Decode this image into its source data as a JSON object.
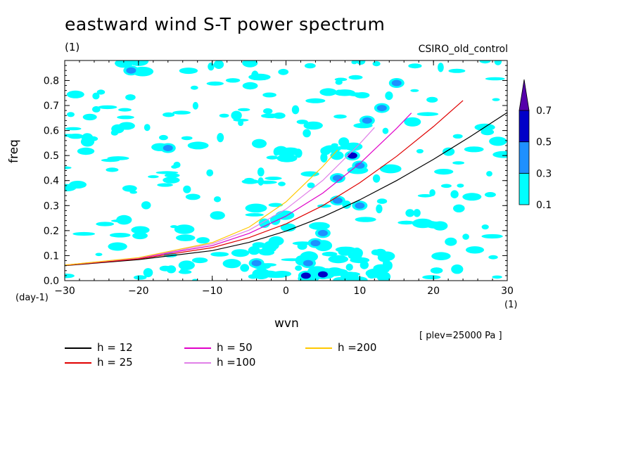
{
  "chart_data": {
    "type": "heatmap",
    "title": "eastward wind S-T power spectrum",
    "subtitle": "(1)",
    "model": "CSIRO_old_control",
    "xlabel": "wvn",
    "ylabel": "freq",
    "x_unit": "(1)",
    "y_unit": "(day-1)",
    "xlim": [
      -30,
      30
    ],
    "ylim": [
      0,
      0.88
    ],
    "x_ticks": [
      -30,
      -20,
      -10,
      0,
      10,
      20,
      30
    ],
    "x_tick_labels": [
      "−30",
      "−20",
      "−10",
      "0",
      "10",
      "20",
      "30"
    ],
    "y_ticks": [
      0,
      0.1,
      0.2,
      0.3,
      0.4,
      0.5,
      0.6,
      0.7,
      0.8
    ],
    "y_tick_labels": [
      "0.0",
      "0.1",
      "0.2",
      "0.3",
      "0.4",
      "0.5",
      "0.6",
      "0.7",
      "0.8"
    ],
    "note": "[ plev=25000 Pa ]",
    "colorbar": {
      "levels": [
        0.1,
        0.3,
        0.5,
        0.7
      ],
      "labels": [
        "0.1",
        "0.3",
        "0.5",
        "0.7"
      ],
      "colors": [
        "#00ffff",
        "#1e90ff",
        "#0000c8",
        "#5500aa"
      ]
    },
    "contour_patches": [
      {
        "x": 2.7,
        "y": 0.02,
        "level": 0.5
      },
      {
        "x": 5,
        "y": 0.025,
        "level": 0.5
      },
      {
        "x": -4,
        "y": 0.07,
        "level": 0.3
      },
      {
        "x": 3,
        "y": 0.07,
        "level": 0.3
      },
      {
        "x": 4,
        "y": 0.15,
        "level": 0.3
      },
      {
        "x": 5,
        "y": 0.19,
        "level": 0.3
      },
      {
        "x": 7,
        "y": 0.32,
        "level": 0.3
      },
      {
        "x": 10,
        "y": 0.3,
        "level": 0.3
      },
      {
        "x": 10,
        "y": 0.46,
        "level": 0.3
      },
      {
        "x": 9,
        "y": 0.5,
        "level": 0.5
      },
      {
        "x": 13,
        "y": 0.69,
        "level": 0.3
      },
      {
        "x": 11,
        "y": 0.64,
        "level": 0.3
      },
      {
        "x": 7,
        "y": 0.41,
        "level": 0.3
      },
      {
        "x": -16,
        "y": 0.53,
        "level": 0.3
      },
      {
        "x": -21,
        "y": 0.84,
        "level": 0.3
      },
      {
        "x": 15,
        "y": 0.79,
        "level": 0.3
      }
    ],
    "series": [
      {
        "name": "h = 12",
        "h": 12,
        "color": "#000000",
        "x": [
          -30,
          -20,
          -10,
          -5,
          0,
          5,
          10,
          15,
          20,
          25,
          30
        ],
        "y": [
          0.06,
          0.084,
          0.12,
          0.153,
          0.198,
          0.255,
          0.323,
          0.4,
          0.485,
          0.576,
          0.672
        ]
      },
      {
        "name": "h = 25",
        "h": 25,
        "color": "#e00000",
        "x": [
          -30,
          -20,
          -10,
          -5,
          0,
          5,
          10,
          15,
          20,
          24
        ],
        "y": [
          0.061,
          0.087,
          0.132,
          0.172,
          0.227,
          0.3,
          0.391,
          0.497,
          0.616,
          0.72
        ]
      },
      {
        "name": "h = 50",
        "h": 50,
        "color": "#e000c8",
        "x": [
          -30,
          -20,
          -10,
          -5,
          0,
          5,
          10,
          15,
          17
        ],
        "y": [
          0.062,
          0.09,
          0.14,
          0.189,
          0.258,
          0.35,
          0.468,
          0.609,
          0.67
        ]
      },
      {
        "name": "h =100",
        "h": 100,
        "color": "#e080e8",
        "x": [
          -30,
          -20,
          -10,
          -5,
          0,
          5,
          10,
          12
        ],
        "y": [
          0.062,
          0.091,
          0.147,
          0.202,
          0.286,
          0.401,
          0.547,
          0.612
        ]
      },
      {
        "name": "h =200",
        "h": 200,
        "color": "#ffc800",
        "x": [
          -30,
          -20,
          -10,
          -5,
          0,
          5,
          7
        ],
        "y": [
          0.062,
          0.092,
          0.152,
          0.214,
          0.315,
          0.457,
          0.523
        ]
      }
    ]
  }
}
